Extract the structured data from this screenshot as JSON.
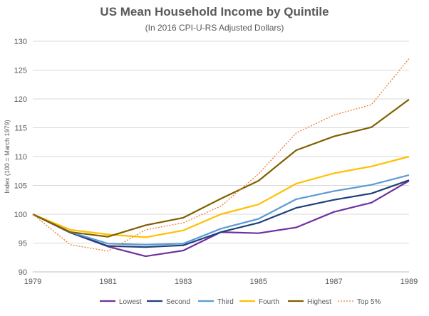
{
  "chart_data": {
    "type": "line",
    "title": "US Mean Household Income by Quintile",
    "subtitle": "(In 2016 CPI-U-RS Adjusted Dollars)",
    "ylabel": "Index (100 = March 1979)",
    "xlabel": "",
    "x": [
      1979,
      1980,
      1981,
      1982,
      1983,
      1984,
      1985,
      1986,
      1987,
      1988,
      1989
    ],
    "xticks": [
      1979,
      1981,
      1983,
      1985,
      1987,
      1989
    ],
    "ylim": [
      90,
      130
    ],
    "yticks": [
      90,
      95,
      100,
      105,
      110,
      115,
      120,
      125,
      130
    ],
    "grid": "horizontal",
    "legend": "bottom",
    "series": [
      {
        "name": "Lowest",
        "color": "#7030A0",
        "dash": false,
        "values": [
          100,
          96.8,
          94.4,
          92.7,
          93.7,
          96.9,
          96.7,
          97.7,
          100.4,
          102.0,
          105.8
        ]
      },
      {
        "name": "Second",
        "color": "#1F3F7A",
        "dash": false,
        "values": [
          100,
          96.8,
          94.5,
          94.3,
          94.6,
          96.9,
          98.5,
          101.1,
          102.5,
          103.6,
          105.9
        ]
      },
      {
        "name": "Third",
        "color": "#5B9BD5",
        "dash": false,
        "values": [
          100,
          96.9,
          94.9,
          94.7,
          94.9,
          97.5,
          99.2,
          102.6,
          104.0,
          105.1,
          106.8
        ]
      },
      {
        "name": "Fourth",
        "color": "#FFC000",
        "dash": false,
        "values": [
          100,
          97.3,
          96.5,
          96.0,
          97.2,
          100.0,
          101.7,
          105.3,
          107.1,
          108.3,
          110.0
        ]
      },
      {
        "name": "Highest",
        "color": "#7F6000",
        "dash": false,
        "values": [
          100,
          96.9,
          96.1,
          98.1,
          99.4,
          102.7,
          105.8,
          111.1,
          113.5,
          115.1,
          119.9
        ]
      },
      {
        "name": "Top 5%",
        "color": "#ED7D31",
        "dash": true,
        "values": [
          100,
          94.7,
          93.6,
          97.3,
          98.5,
          101.4,
          107.0,
          114.1,
          117.2,
          119.0,
          127.0
        ]
      }
    ]
  }
}
